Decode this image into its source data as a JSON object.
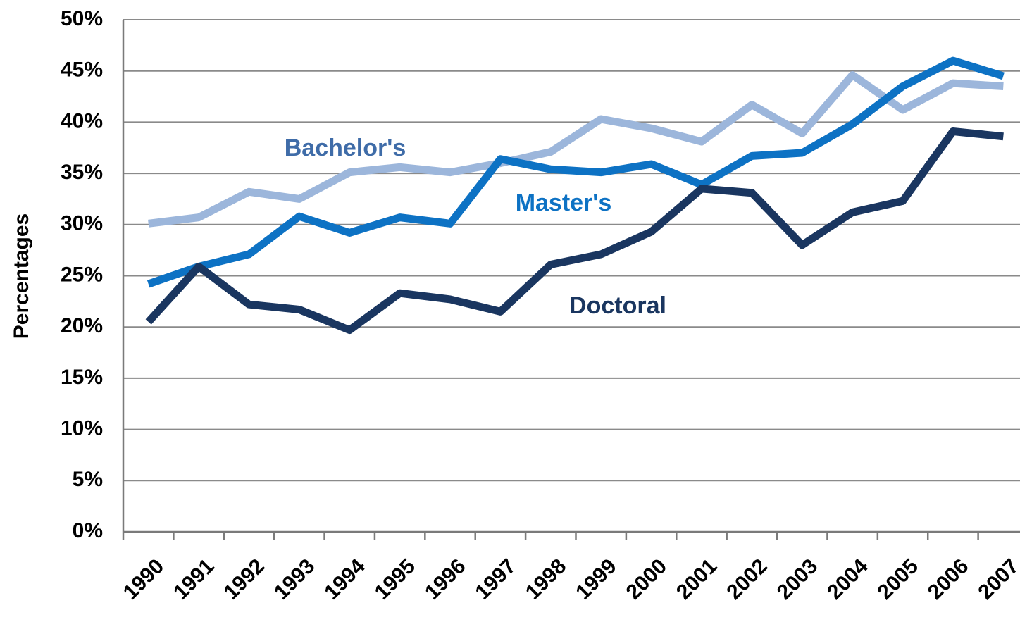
{
  "chart_data": {
    "type": "line",
    "y_label": "Percentages",
    "categories": [
      "1990",
      "1991",
      "1992",
      "1993",
      "1994",
      "1995",
      "1996",
      "1997",
      "1998",
      "1999",
      "2000",
      "2001",
      "2002",
      "2003",
      "2004",
      "2005",
      "2006",
      "2007"
    ],
    "series": [
      {
        "name": "Bachelor's",
        "color": "#9cb6db",
        "label_color": "#3f6ca8",
        "values": [
          30.1,
          30.7,
          33.2,
          32.5,
          35.1,
          35.6,
          35.1,
          36.0,
          37.1,
          40.3,
          39.4,
          38.1,
          41.7,
          38.9,
          44.6,
          41.2,
          43.8,
          43.5
        ]
      },
      {
        "name": "Master's",
        "color": "#0d72c4",
        "label_color": "#0d72c4",
        "values": [
          24.2,
          25.9,
          27.1,
          30.8,
          29.2,
          30.7,
          30.1,
          36.4,
          35.4,
          35.1,
          35.9,
          33.9,
          36.7,
          37.0,
          39.8,
          43.5,
          46.0,
          44.5
        ]
      },
      {
        "name": "Doctoral",
        "color": "#1a3660",
        "label_color": "#1a3660",
        "values": [
          20.5,
          25.9,
          22.2,
          21.7,
          19.7,
          23.3,
          22.7,
          21.5,
          26.1,
          27.1,
          29.3,
          33.5,
          33.1,
          28.0,
          31.2,
          32.3,
          39.1,
          38.6
        ]
      }
    ],
    "ylim": [
      0,
      50
    ],
    "yticks": [
      {
        "value": 0,
        "label": "0%"
      },
      {
        "value": 5,
        "label": "5%"
      },
      {
        "value": 10,
        "label": "10%"
      },
      {
        "value": 15,
        "label": "15%"
      },
      {
        "value": 20,
        "label": "20%"
      },
      {
        "value": 25,
        "label": "25%"
      },
      {
        "value": 30,
        "label": "30%"
      },
      {
        "value": 35,
        "label": "35%"
      },
      {
        "value": 40,
        "label": "40%"
      },
      {
        "value": 45,
        "label": "45%"
      },
      {
        "value": 50,
        "label": "50%"
      }
    ],
    "grid": true
  }
}
